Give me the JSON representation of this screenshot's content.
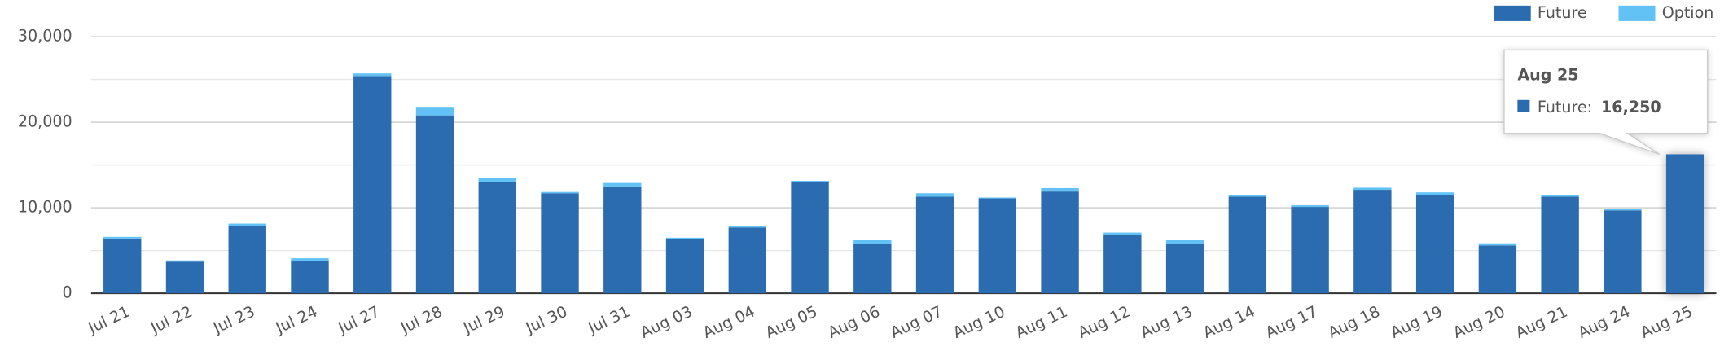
{
  "chart_data": {
    "type": "stacked-bar",
    "categories": [
      "Jul 21",
      "Jul 22",
      "Jul 23",
      "Jul 24",
      "Jul 27",
      "Jul 28",
      "Jul 29",
      "Jul 30",
      "Jul 31",
      "Aug 03",
      "Aug 04",
      "Aug 05",
      "Aug 06",
      "Aug 07",
      "Aug 10",
      "Aug 11",
      "Aug 12",
      "Aug 13",
      "Aug 14",
      "Aug 17",
      "Aug 18",
      "Aug 19",
      "Aug 20",
      "Aug 21",
      "Aug 24",
      "Aug 25"
    ],
    "series": [
      {
        "name": "Future",
        "color": "#2b6cb0",
        "values": [
          6400,
          3700,
          7900,
          3800,
          25400,
          20800,
          13000,
          11700,
          12500,
          6300,
          7700,
          13000,
          5800,
          11300,
          11100,
          11900,
          6800,
          5800,
          11300,
          10100,
          12100,
          11500,
          5600,
          11300,
          9700,
          16250
        ]
      },
      {
        "name": "Option",
        "color": "#63c2f5",
        "values": [
          200,
          150,
          250,
          300,
          300,
          1000,
          500,
          150,
          400,
          200,
          200,
          150,
          400,
          400,
          100,
          400,
          300,
          400,
          150,
          200,
          250,
          300,
          250,
          150,
          200,
          0
        ]
      }
    ],
    "ylim": [
      0,
      30000
    ],
    "yticks": [
      0,
      {
        "value": 10000,
        "label": "10,000"
      },
      {
        "value": 20000,
        "label": "20,000"
      },
      {
        "value": 30000,
        "label": "30,000"
      }
    ],
    "minor_yticks": [
      5000,
      15000,
      25000
    ],
    "grid": true,
    "legend": "top-right",
    "tooltip": {
      "title": "Aug 25",
      "label": "Future:",
      "value": {
        "value": 16250,
        "label": "16,250"
      }
    }
  }
}
